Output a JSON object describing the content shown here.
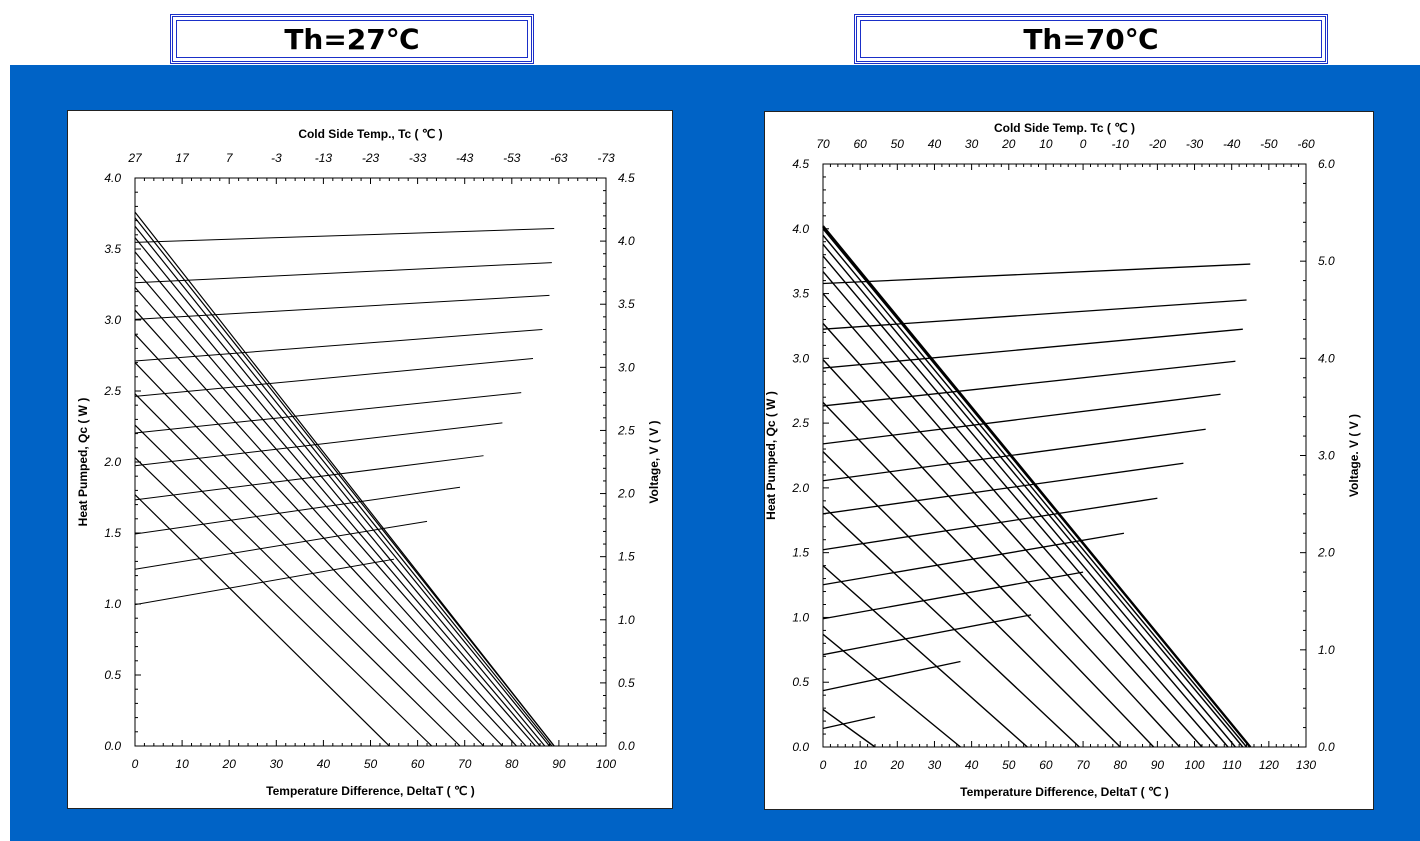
{
  "colors": {
    "band": "#0063c6",
    "title_border": "#1a2fc8"
  },
  "chart_data": [
    {
      "type": "line",
      "title": "Th=27℃",
      "top_axis_label": "Cold Side Temp., Tc ( ℃ )",
      "top_ticks": [
        "27",
        "17",
        "7",
        "-3",
        "-13",
        "-23",
        "-33",
        "-43",
        "-53",
        "-63",
        "-73"
      ],
      "xlabel": "Temperature Difference, DeltaT ( ℃ )",
      "ylabel": "Heat Pumped, Qc  ( W )",
      "y2label": "Voltage, V ( V )",
      "x_ticks": [
        "0",
        "10",
        "20",
        "30",
        "40",
        "50",
        "60",
        "70",
        "80",
        "90",
        "100"
      ],
      "y_ticks": [
        "0.0",
        "0.5",
        "1.0",
        "1.5",
        "2.0",
        "2.5",
        "3.0",
        "3.5",
        "4.0"
      ],
      "y2_ticks": [
        "0.0",
        "0.5",
        "1.0",
        "1.5",
        "2.0",
        "2.5",
        "3.0",
        "3.5",
        "4.0",
        "4.5"
      ],
      "xlim": [
        0,
        100
      ],
      "ylim": [
        0,
        4.0
      ],
      "y2lim": [
        0,
        4.5
      ],
      "qc_series": [
        {
          "x": [
            0,
            54
          ],
          "y": [
            1.77,
            0
          ]
        },
        {
          "x": [
            0,
            63
          ],
          "y": [
            2.03,
            0
          ]
        },
        {
          "x": [
            0,
            69
          ],
          "y": [
            2.26,
            0
          ]
        },
        {
          "x": [
            0,
            74
          ],
          "y": [
            2.48,
            0
          ]
        },
        {
          "x": [
            0,
            78
          ],
          "y": [
            2.7,
            0
          ]
        },
        {
          "x": [
            0,
            81
          ],
          "y": [
            2.9,
            0
          ]
        },
        {
          "x": [
            0,
            83
          ],
          "y": [
            3.07,
            0
          ]
        },
        {
          "x": [
            0,
            85
          ],
          "y": [
            3.23,
            0
          ]
        },
        {
          "x": [
            0,
            86
          ],
          "y": [
            3.36,
            0
          ]
        },
        {
          "x": [
            0,
            87
          ],
          "y": [
            3.48,
            0
          ]
        },
        {
          "x": [
            0,
            88
          ],
          "y": [
            3.58,
            0
          ]
        },
        {
          "x": [
            0,
            88.5
          ],
          "y": [
            3.66,
            0
          ]
        },
        {
          "x": [
            0,
            89
          ],
          "y": [
            3.72,
            0
          ]
        },
        {
          "x": [
            0,
            89
          ],
          "y": [
            3.76,
            0
          ]
        }
      ],
      "voltage_series": [
        {
          "x": [
            0,
            55
          ],
          "y": [
            1.12,
            1.48
          ]
        },
        {
          "x": [
            0,
            62
          ],
          "y": [
            1.4,
            1.78
          ]
        },
        {
          "x": [
            0,
            69
          ],
          "y": [
            1.68,
            2.05
          ]
        },
        {
          "x": [
            0,
            74
          ],
          "y": [
            1.95,
            2.3
          ]
        },
        {
          "x": [
            0,
            78
          ],
          "y": [
            2.22,
            2.56
          ]
        },
        {
          "x": [
            0,
            82
          ],
          "y": [
            2.48,
            2.8
          ]
        },
        {
          "x": [
            0,
            84.5
          ],
          "y": [
            2.77,
            3.07
          ]
        },
        {
          "x": [
            0,
            86.5
          ],
          "y": [
            3.05,
            3.3
          ]
        },
        {
          "x": [
            0,
            88
          ],
          "y": [
            3.38,
            3.57
          ]
        },
        {
          "x": [
            0,
            88.5
          ],
          "y": [
            3.67,
            3.83
          ]
        },
        {
          "x": [
            0,
            89
          ],
          "y": [
            3.99,
            4.1
          ]
        }
      ]
    },
    {
      "type": "line",
      "title": "Th=70℃",
      "top_axis_label": "Cold  Side Temp. Tc ( ℃ )",
      "top_ticks": [
        "70",
        "60",
        "50",
        "40",
        "30",
        "20",
        "10",
        "0",
        "-10",
        "-20",
        "-30",
        "-40",
        "-50",
        "-60"
      ],
      "xlabel": "Temperature Difference, DeltaT ( ℃ )",
      "ylabel": "Heat Pumped, Qc  ( W )",
      "y2label": "Voltage. V ( V )",
      "x_ticks": [
        "0",
        "10",
        "20",
        "30",
        "40",
        "50",
        "60",
        "70",
        "80",
        "90",
        "100",
        "110",
        "120",
        "130"
      ],
      "y_ticks": [
        "0.0",
        "0.5",
        "1.0",
        "1.5",
        "2.0",
        "2.5",
        "3.0",
        "3.5",
        "4.0",
        "4.5"
      ],
      "y2_ticks": [
        "0.0",
        "1.0",
        "2.0",
        "3.0",
        "4.0",
        "5.0",
        "6.0"
      ],
      "xlim": [
        0,
        130
      ],
      "ylim": [
        0,
        4.5
      ],
      "y2lim": [
        0,
        6.0
      ],
      "qc_series": [
        {
          "x": [
            0,
            14
          ],
          "y": [
            0.29,
            0
          ]
        },
        {
          "x": [
            0,
            37
          ],
          "y": [
            0.87,
            0
          ]
        },
        {
          "x": [
            0,
            55
          ],
          "y": [
            1.4,
            0
          ]
        },
        {
          "x": [
            0,
            69
          ],
          "y": [
            1.86,
            0
          ]
        },
        {
          "x": [
            0,
            80
          ],
          "y": [
            2.28,
            0
          ]
        },
        {
          "x": [
            0,
            89
          ],
          "y": [
            2.66,
            0
          ]
        },
        {
          "x": [
            0,
            96
          ],
          "y": [
            2.99,
            0
          ]
        },
        {
          "x": [
            0,
            102
          ],
          "y": [
            3.27,
            0
          ]
        },
        {
          "x": [
            0,
            106
          ],
          "y": [
            3.5,
            0
          ]
        },
        {
          "x": [
            0,
            109
          ],
          "y": [
            3.67,
            0
          ]
        },
        {
          "x": [
            0,
            111
          ],
          "y": [
            3.79,
            0
          ]
        },
        {
          "x": [
            0,
            113
          ],
          "y": [
            3.88,
            0
          ]
        },
        {
          "x": [
            0,
            114
          ],
          "y": [
            3.95,
            0
          ]
        },
        {
          "x": [
            0,
            115
          ],
          "y": [
            4.0,
            0
          ]
        },
        {
          "x": [
            0,
            115
          ],
          "y": [
            4.02,
            0
          ]
        }
      ],
      "voltage_series": [
        {
          "x": [
            0,
            14
          ],
          "y": [
            0.19,
            0.31
          ]
        },
        {
          "x": [
            0,
            37
          ],
          "y": [
            0.58,
            0.88
          ]
        },
        {
          "x": [
            0,
            56
          ],
          "y": [
            0.95,
            1.36
          ]
        },
        {
          "x": [
            0,
            70
          ],
          "y": [
            1.32,
            1.8
          ]
        },
        {
          "x": [
            0,
            81
          ],
          "y": [
            1.67,
            2.2
          ]
        },
        {
          "x": [
            0,
            90
          ],
          "y": [
            2.03,
            2.56
          ]
        },
        {
          "x": [
            0,
            97
          ],
          "y": [
            2.4,
            2.92
          ]
        },
        {
          "x": [
            0,
            103
          ],
          "y": [
            2.74,
            3.27
          ]
        },
        {
          "x": [
            0,
            107
          ],
          "y": [
            3.12,
            3.63
          ]
        },
        {
          "x": [
            0,
            111
          ],
          "y": [
            3.51,
            3.97
          ]
        },
        {
          "x": [
            0,
            113
          ],
          "y": [
            3.9,
            4.3
          ]
        },
        {
          "x": [
            0,
            114
          ],
          "y": [
            4.3,
            4.6
          ]
        },
        {
          "x": [
            0,
            115
          ],
          "y": [
            4.77,
            4.97
          ]
        }
      ]
    }
  ]
}
